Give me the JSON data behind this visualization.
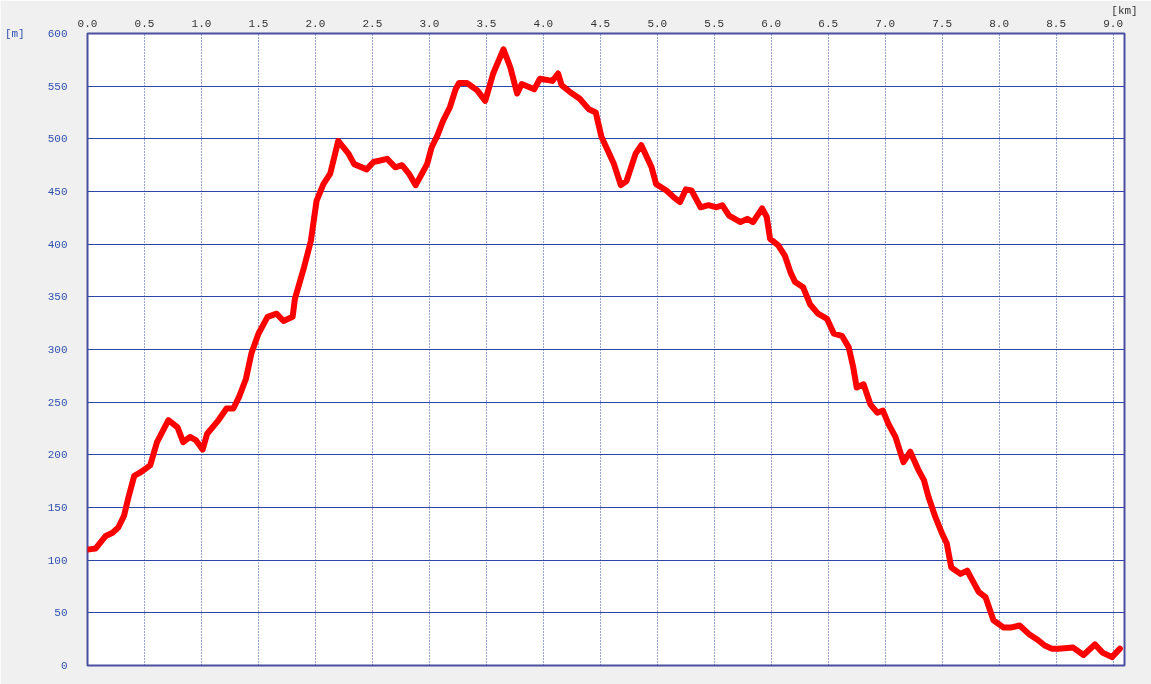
{
  "chart_data": {
    "type": "line",
    "xlabel": "[km]",
    "ylabel": "[m]",
    "x": [
      0.0,
      0.07,
      0.16,
      0.22,
      0.27,
      0.32,
      0.36,
      0.41,
      0.46,
      0.55,
      0.61,
      0.71,
      0.79,
      0.84,
      0.9,
      0.95,
      1.01,
      1.05,
      1.15,
      1.22,
      1.28,
      1.33,
      1.39,
      1.44,
      1.5,
      1.58,
      1.66,
      1.72,
      1.8,
      1.82,
      1.9,
      1.96,
      2.01,
      2.07,
      2.13,
      2.2,
      2.29,
      2.34,
      2.45,
      2.51,
      2.63,
      2.7,
      2.76,
      2.82,
      2.88,
      2.94,
      2.98,
      3.02,
      3.07,
      3.12,
      3.18,
      3.23,
      3.26,
      3.33,
      3.42,
      3.49,
      3.56,
      3.65,
      3.71,
      3.77,
      3.81,
      3.92,
      3.97,
      4.08,
      4.13,
      4.16,
      4.24,
      4.32,
      4.4,
      4.46,
      4.51,
      4.62,
      4.68,
      4.73,
      4.81,
      4.86,
      4.95,
      4.99,
      5.08,
      5.14,
      5.2,
      5.25,
      5.3,
      5.38,
      5.45,
      5.52,
      5.57,
      5.63,
      5.73,
      5.79,
      5.84,
      5.92,
      5.96,
      5.99,
      6.06,
      6.12,
      6.17,
      6.21,
      6.28,
      6.34,
      6.41,
      6.49,
      6.55,
      6.62,
      6.68,
      6.72,
      6.75,
      6.81,
      6.87,
      6.93,
      6.98,
      7.03,
      7.09,
      7.16,
      7.22,
      7.29,
      7.34,
      7.38,
      7.44,
      7.5,
      7.54,
      7.58,
      7.66,
      7.72,
      7.78,
      7.82,
      7.88,
      7.95,
      8.04,
      8.1,
      8.18,
      8.26,
      8.33,
      8.4,
      8.46,
      8.52,
      8.65,
      8.74,
      8.84,
      8.91,
      8.99,
      9.06
    ],
    "series": [
      {
        "color": "#ff0000",
        "values": [
          110,
          111,
          123,
          126,
          131,
          142,
          160,
          180,
          183,
          190,
          212,
          233,
          226,
          212,
          217,
          214,
          205,
          220,
          233,
          244,
          244,
          255,
          272,
          297,
          315,
          331,
          334,
          327,
          331,
          348,
          378,
          403,
          441,
          457,
          467,
          498,
          486,
          476,
          471,
          478,
          481,
          473,
          475,
          467,
          456,
          468,
          476,
          492,
          503,
          517,
          530,
          547,
          553,
          553,
          546,
          536,
          562,
          585,
          568,
          543,
          552,
          547,
          557,
          555,
          562,
          551,
          544,
          538,
          528,
          525,
          502,
          476,
          456,
          460,
          486,
          494,
          473,
          457,
          451,
          445,
          440,
          452,
          451,
          435,
          437,
          435,
          437,
          427,
          421,
          424,
          421,
          434,
          426,
          405,
          399,
          389,
          373,
          364,
          359,
          343,
          334,
          329,
          315,
          313,
          302,
          283,
          264,
          267,
          248,
          240,
          242,
          229,
          217,
          193,
          203,
          186,
          176,
          160,
          141,
          125,
          116,
          93,
          87,
          90,
          78,
          70,
          65,
          43,
          36,
          36,
          38,
          30,
          25,
          19,
          16,
          16,
          17,
          10,
          20,
          12,
          8,
          16
        ]
      }
    ],
    "xlim": [
      0,
      9.1
    ],
    "ylim": [
      0,
      600
    ],
    "xticks": [
      {
        "value": 0,
        "label": "0.0"
      },
      {
        "value": 0.5,
        "label": "0.5"
      },
      {
        "value": 1,
        "label": "1.0"
      },
      {
        "value": 1.5,
        "label": "1.5"
      },
      {
        "value": 2,
        "label": "2.0"
      },
      {
        "value": 2.5,
        "label": "2.5"
      },
      {
        "value": 3,
        "label": "3.0"
      },
      {
        "value": 3.5,
        "label": "3.5"
      },
      {
        "value": 4,
        "label": "4.0"
      },
      {
        "value": 4.5,
        "label": "4.5"
      },
      {
        "value": 5,
        "label": "5.0"
      },
      {
        "value": 5.5,
        "label": "5.5"
      },
      {
        "value": 6,
        "label": "6.0"
      },
      {
        "value": 6.5,
        "label": "6.5"
      },
      {
        "value": 7,
        "label": "7.0"
      },
      {
        "value": 7.5,
        "label": "7.5"
      },
      {
        "value": 8,
        "label": "8.0"
      },
      {
        "value": 8.5,
        "label": "8.5"
      },
      {
        "value": 9,
        "label": "9.0"
      }
    ],
    "yticks": [
      0,
      50,
      100,
      150,
      200,
      250,
      300,
      350,
      400,
      450,
      500,
      550,
      600
    ],
    "grid": true,
    "line_style": "solid"
  }
}
